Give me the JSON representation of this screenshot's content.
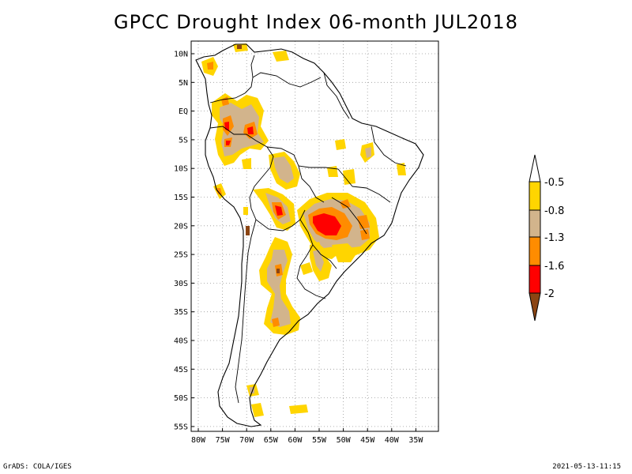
{
  "title": "GPCC Drought Index 06-month JUL2018",
  "map": {
    "lat_labels": [
      "10N",
      "5N",
      "EQ",
      "5S",
      "10S",
      "15S",
      "20S",
      "25S",
      "30S",
      "35S",
      "40S",
      "45S",
      "50S",
      "55S"
    ],
    "lon_labels": [
      "80W",
      "75W",
      "70W",
      "65W",
      "60W",
      "55W",
      "50W",
      "45W",
      "40W",
      "35W"
    ]
  },
  "legend": {
    "labels": [
      "-0.5",
      "-0.8",
      "-1.3",
      "-1.6",
      "-2"
    ],
    "colors": [
      "#ffffff",
      "#ffd500",
      "#d2b48c",
      "#ff8c00",
      "#ff0000",
      "#8b4513"
    ]
  },
  "colors": {
    "yellow": "#ffd500",
    "tan": "#d2b48c",
    "orange": "#ff8c00",
    "red": "#ff0000",
    "brown": "#8b4513"
  },
  "footer": {
    "left": "GrADS: COLA/IGES",
    "right": "2021-05-13-11:15"
  }
}
